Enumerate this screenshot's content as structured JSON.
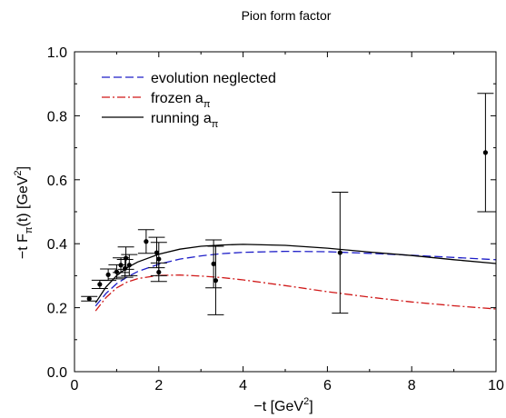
{
  "chart_data": {
    "type": "line",
    "title": "Pion form factor",
    "xlabel": {
      "prefix": "−t  [GeV",
      "sup": "2",
      "suffix": "]"
    },
    "ylabel": {
      "p1": "−t F",
      "sub1": "π",
      "p2": "(t) [GeV",
      "sup": "2",
      "p3": "]"
    },
    "xlim": [
      0,
      10
    ],
    "ylim": [
      0,
      1.0
    ],
    "xticks": [
      0,
      2,
      4,
      6,
      8,
      10
    ],
    "xtick_labels": [
      "0",
      "2",
      "4",
      "6",
      "8",
      "10"
    ],
    "yticks": [
      0,
      0.2,
      0.4,
      0.6,
      0.8,
      1.0
    ],
    "ytick_labels": [
      "0.0",
      "0.2",
      "0.4",
      "0.6",
      "0.8",
      "1.0"
    ],
    "legend_position": "top-left",
    "series": [
      {
        "name": "evolution neglected",
        "legend": {
          "text": "evolution neglected",
          "sub": ""
        },
        "color": "#1f1fc8",
        "style": "dashed",
        "x": [
          0.5,
          0.75,
          1.0,
          1.25,
          1.5,
          2.0,
          2.5,
          3.0,
          3.5,
          4.0,
          5.0,
          6.0,
          7.0,
          8.0,
          9.0,
          10.0
        ],
        "y": [
          0.205,
          0.245,
          0.275,
          0.296,
          0.313,
          0.336,
          0.352,
          0.362,
          0.369,
          0.373,
          0.376,
          0.375,
          0.37,
          0.364,
          0.357,
          0.35
        ]
      },
      {
        "name": "frozen a_pi",
        "legend": {
          "text": "frozen a",
          "sub": "π"
        },
        "color": "#d01818",
        "style": "dashdot",
        "x": [
          0.5,
          0.75,
          1.0,
          1.25,
          1.5,
          2.0,
          2.5,
          3.0,
          3.5,
          4.0,
          5.0,
          6.0,
          7.0,
          8.0,
          9.0,
          10.0
        ],
        "y": [
          0.19,
          0.232,
          0.262,
          0.28,
          0.291,
          0.301,
          0.302,
          0.299,
          0.294,
          0.287,
          0.269,
          0.25,
          0.233,
          0.218,
          0.206,
          0.196
        ]
      },
      {
        "name": "running a_pi",
        "legend": {
          "text": "running a",
          "sub": "π"
        },
        "color": "#000000",
        "style": "solid",
        "x": [
          0.5,
          0.75,
          1.0,
          1.25,
          1.5,
          2.0,
          2.5,
          3.0,
          3.5,
          4.0,
          5.0,
          6.0,
          7.0,
          8.0,
          9.0,
          10.0
        ],
        "y": [
          0.215,
          0.265,
          0.3,
          0.325,
          0.343,
          0.367,
          0.383,
          0.392,
          0.396,
          0.398,
          0.395,
          0.386,
          0.374,
          0.363,
          0.35,
          0.338
        ]
      }
    ],
    "data_points": [
      {
        "x": 0.35,
        "y": 0.228,
        "lo": 0.221,
        "hi": 0.235
      },
      {
        "x": 0.6,
        "y": 0.273,
        "lo": 0.26,
        "hi": 0.286
      },
      {
        "x": 0.8,
        "y": 0.303,
        "lo": 0.285,
        "hi": 0.321
      },
      {
        "x": 1.0,
        "y": 0.312,
        "lo": 0.29,
        "hi": 0.334
      },
      {
        "x": 1.1,
        "y": 0.333,
        "lo": 0.31,
        "hi": 0.356
      },
      {
        "x": 1.2,
        "y": 0.323,
        "lo": 0.295,
        "hi": 0.351
      },
      {
        "x": 1.22,
        "y": 0.355,
        "lo": 0.32,
        "hi": 0.39
      },
      {
        "x": 1.3,
        "y": 0.333,
        "lo": 0.3,
        "hi": 0.366
      },
      {
        "x": 1.7,
        "y": 0.407,
        "lo": 0.37,
        "hi": 0.444
      },
      {
        "x": 1.95,
        "y": 0.372,
        "lo": 0.325,
        "hi": 0.42
      },
      {
        "x": 2.0,
        "y": 0.352,
        "lo": 0.3,
        "hi": 0.404
      },
      {
        "x": 2.0,
        "y": 0.311,
        "lo": 0.282,
        "hi": 0.34
      },
      {
        "x": 3.3,
        "y": 0.337,
        "lo": 0.262,
        "hi": 0.412
      },
      {
        "x": 3.35,
        "y": 0.285,
        "lo": 0.178,
        "hi": 0.392
      },
      {
        "x": 6.3,
        "y": 0.372,
        "lo": 0.183,
        "hi": 0.561
      },
      {
        "x": 9.75,
        "y": 0.685,
        "lo": 0.5,
        "hi": 0.87
      }
    ]
  }
}
